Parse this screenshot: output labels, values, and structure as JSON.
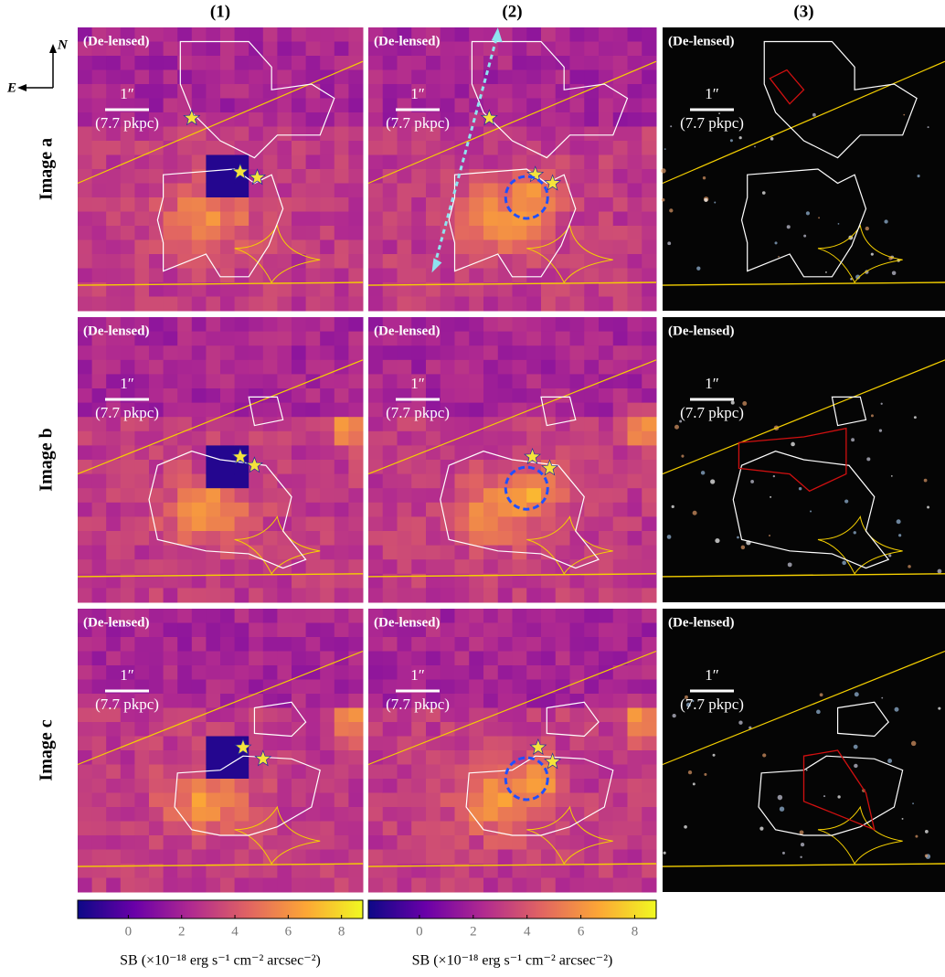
{
  "figure": {
    "columns": [
      "(1)",
      "(2)",
      "(3)"
    ],
    "rows": [
      "Image a",
      "Image b",
      "Image c"
    ],
    "compass": {
      "north": "N",
      "east": "E"
    },
    "panels": [
      [
        {
          "label": "(De-lensed)",
          "scale": "1″",
          "scale_phys": "(7.7 pkpc)"
        },
        {
          "label": "(De-lensed)",
          "scale": "1″",
          "scale_phys": "(7.7 pkpc)"
        },
        {
          "label": "(De-lensed)",
          "scale": "1″",
          "scale_phys": "(7.7 pkpc)"
        }
      ],
      [
        {
          "label": "(De-lensed)",
          "scale": "1″",
          "scale_phys": "(7.7 pkpc)"
        },
        {
          "label": "(De-lensed)",
          "scale": "1″",
          "scale_phys": "(7.7 pkpc)"
        },
        {
          "label": "(De-lensed)",
          "scale": "1″",
          "scale_phys": "(7.7 pkpc)"
        }
      ],
      [
        {
          "label": "(De-lensed)",
          "scale": "1″",
          "scale_phys": "(7.7 pkpc)"
        },
        {
          "label": "(De-lensed)",
          "scale": "1″",
          "scale_phys": "(7.7 pkpc)"
        },
        {
          "label": "(De-lensed)",
          "scale": "1″",
          "scale_phys": "(7.7 pkpc)"
        }
      ]
    ],
    "colorbars": [
      {
        "range": [
          -1.9,
          8.8
        ],
        "ticks": [
          0,
          2,
          4,
          6,
          8
        ],
        "label": "SB (×10⁻¹⁸ erg s⁻¹ cm⁻² arcsec⁻²)"
      },
      {
        "range": [
          -1.9,
          8.8
        ],
        "ticks": [
          0,
          2,
          4,
          6,
          8
        ],
        "label": "SB (×10⁻¹⁸ erg s⁻¹ cm⁻² arcsec⁻²)"
      }
    ]
  }
}
